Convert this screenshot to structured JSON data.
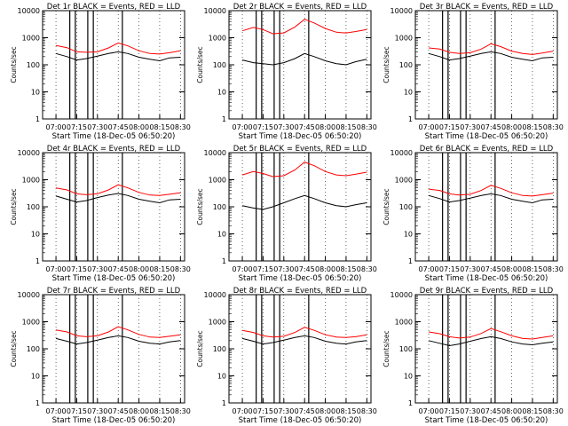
{
  "xlabel": "Start Time (18-Dec-05 06:50:20)",
  "ylabel": "Counts/sec",
  "x_ticks": [
    "07:00",
    "07:15",
    "07:30",
    "07:45",
    "08:00",
    "08:15",
    "08:30"
  ],
  "y_ticks": [
    "1",
    "10",
    "100",
    "1000",
    "10000"
  ],
  "colors": {
    "events": "#000000",
    "lld": "#ff0000",
    "background": "#ffffff"
  },
  "chart_data": [
    {
      "type": "line",
      "title": "Det 1r BLACK = Events, RED = LLD",
      "x": [
        "07:00",
        "07:08",
        "07:15",
        "07:22",
        "07:30",
        "07:38",
        "07:45",
        "07:52",
        "08:00",
        "08:08",
        "08:15",
        "08:22",
        "08:30"
      ],
      "y_scale": "log",
      "ylim": [
        1,
        10000
      ],
      "grid": "dotted-vertical",
      "legend": "title",
      "series": [
        {
          "name": "Events",
          "color": "#000000",
          "values": [
            260,
            200,
            150,
            170,
            210,
            260,
            300,
            260,
            190,
            160,
            140,
            180,
            190
          ]
        },
        {
          "name": "LLD",
          "color": "#ff0000",
          "values": [
            520,
            430,
            300,
            290,
            300,
            420,
            640,
            500,
            330,
            260,
            250,
            280,
            330
          ]
        }
      ],
      "vertical_lines": [
        "07:10",
        "07:14",
        "07:23",
        "07:27",
        "07:48"
      ]
    },
    {
      "type": "line",
      "title": "Det 2r BLACK = Events, RED = LLD",
      "x": [
        "07:00",
        "07:08",
        "07:15",
        "07:22",
        "07:30",
        "07:38",
        "07:45",
        "07:52",
        "08:00",
        "08:08",
        "08:15",
        "08:22",
        "08:30"
      ],
      "y_scale": "log",
      "ylim": [
        1,
        10000
      ],
      "grid": "dotted-vertical",
      "legend": "title",
      "series": [
        {
          "name": "Events",
          "color": "#000000",
          "values": [
            150,
            120,
            110,
            100,
            120,
            170,
            260,
            200,
            140,
            110,
            100,
            130,
            160
          ]
        },
        {
          "name": "LLD",
          "color": "#ff0000",
          "values": [
            1800,
            2400,
            2000,
            1400,
            1500,
            2500,
            4800,
            3500,
            2200,
            1600,
            1500,
            1700,
            2000
          ]
        }
      ],
      "vertical_lines": [
        "07:10",
        "07:14",
        "07:23",
        "07:27",
        "07:48"
      ]
    },
    {
      "type": "line",
      "title": "Det 3r BLACK = Events, RED = LLD",
      "x": [
        "07:00",
        "07:08",
        "07:15",
        "07:22",
        "07:30",
        "07:38",
        "07:45",
        "07:52",
        "08:00",
        "08:08",
        "08:15",
        "08:22",
        "08:30"
      ],
      "y_scale": "log",
      "ylim": [
        1,
        10000
      ],
      "grid": "dotted-vertical",
      "legend": "title",
      "series": [
        {
          "name": "Events",
          "color": "#000000",
          "values": [
            260,
            200,
            150,
            170,
            210,
            260,
            300,
            260,
            190,
            160,
            140,
            180,
            190
          ]
        },
        {
          "name": "LLD",
          "color": "#ff0000",
          "values": [
            420,
            380,
            290,
            260,
            280,
            380,
            600,
            470,
            320,
            260,
            240,
            270,
            320
          ]
        }
      ],
      "vertical_lines": [
        "07:10",
        "07:14",
        "07:23",
        "07:27",
        "07:48"
      ]
    },
    {
      "type": "line",
      "title": "Det 4r BLACK = Events, RED = LLD",
      "x": [
        "07:00",
        "07:08",
        "07:15",
        "07:22",
        "07:30",
        "07:38",
        "07:45",
        "07:52",
        "08:00",
        "08:08",
        "08:15",
        "08:22",
        "08:30"
      ],
      "y_scale": "log",
      "ylim": [
        1,
        10000
      ],
      "grid": "dotted-vertical",
      "legend": "title",
      "series": [
        {
          "name": "Events",
          "color": "#000000",
          "values": [
            250,
            190,
            150,
            170,
            220,
            270,
            310,
            260,
            190,
            160,
            140,
            180,
            190
          ]
        },
        {
          "name": "LLD",
          "color": "#ff0000",
          "values": [
            500,
            420,
            300,
            280,
            300,
            420,
            650,
            500,
            340,
            270,
            260,
            290,
            330
          ]
        }
      ],
      "vertical_lines": [
        "07:10",
        "07:14",
        "07:23",
        "07:27",
        "07:48"
      ]
    },
    {
      "type": "line",
      "title": "Det 5r BLACK = Events, RED = LLD",
      "x": [
        "07:00",
        "07:08",
        "07:15",
        "07:22",
        "07:30",
        "07:38",
        "07:45",
        "07:52",
        "08:00",
        "08:08",
        "08:15",
        "08:22",
        "08:30"
      ],
      "y_scale": "log",
      "ylim": [
        1,
        10000
      ],
      "grid": "dotted-vertical",
      "legend": "title",
      "series": [
        {
          "name": "Events",
          "color": "#000000",
          "values": [
            110,
            90,
            80,
            100,
            140,
            200,
            260,
            200,
            140,
            110,
            100,
            120,
            140
          ]
        },
        {
          "name": "LLD",
          "color": "#ff0000",
          "values": [
            1500,
            2000,
            1700,
            1300,
            1400,
            2300,
            4500,
            3300,
            2000,
            1500,
            1400,
            1600,
            1900
          ]
        }
      ],
      "vertical_lines": [
        "07:10",
        "07:14",
        "07:23",
        "07:27",
        "07:48"
      ]
    },
    {
      "type": "line",
      "title": "Det 6r BLACK = Events, RED = LLD",
      "x": [
        "07:00",
        "07:08",
        "07:15",
        "07:22",
        "07:30",
        "07:38",
        "07:45",
        "07:52",
        "08:00",
        "08:08",
        "08:15",
        "08:22",
        "08:30"
      ],
      "y_scale": "log",
      "ylim": [
        1,
        10000
      ],
      "grid": "dotted-vertical",
      "legend": "title",
      "series": [
        {
          "name": "Events",
          "color": "#000000",
          "values": [
            260,
            200,
            150,
            170,
            210,
            260,
            300,
            260,
            190,
            160,
            140,
            180,
            190
          ]
        },
        {
          "name": "LLD",
          "color": "#ff0000",
          "values": [
            450,
            400,
            300,
            270,
            290,
            400,
            620,
            480,
            330,
            260,
            250,
            280,
            320
          ]
        }
      ],
      "vertical_lines": [
        "07:10",
        "07:14",
        "07:23",
        "07:27",
        "07:48"
      ]
    },
    {
      "type": "line",
      "title": "Det 7r BLACK = Events, RED = LLD",
      "x": [
        "07:00",
        "07:08",
        "07:15",
        "07:22",
        "07:30",
        "07:38",
        "07:45",
        "07:52",
        "08:00",
        "08:08",
        "08:15",
        "08:22",
        "08:30"
      ],
      "y_scale": "log",
      "ylim": [
        1,
        10000
      ],
      "grid": "dotted-vertical",
      "legend": "title",
      "series": [
        {
          "name": "Events",
          "color": "#000000",
          "values": [
            240,
            190,
            150,
            170,
            210,
            260,
            300,
            260,
            190,
            160,
            150,
            180,
            200
          ]
        },
        {
          "name": "LLD",
          "color": "#ff0000",
          "values": [
            500,
            420,
            300,
            280,
            300,
            420,
            650,
            500,
            340,
            270,
            260,
            290,
            330
          ]
        }
      ],
      "vertical_lines": [
        "07:10",
        "07:14",
        "07:23",
        "07:27",
        "07:48"
      ]
    },
    {
      "type": "line",
      "title": "Det 8r BLACK = Events, RED = LLD",
      "x": [
        "07:00",
        "07:08",
        "07:15",
        "07:22",
        "07:30",
        "07:38",
        "07:45",
        "07:52",
        "08:00",
        "08:08",
        "08:15",
        "08:22",
        "08:30"
      ],
      "y_scale": "log",
      "ylim": [
        1,
        10000
      ],
      "grid": "dotted-vertical",
      "legend": "title",
      "series": [
        {
          "name": "Events",
          "color": "#000000",
          "values": [
            240,
            190,
            150,
            170,
            210,
            260,
            300,
            260,
            190,
            160,
            150,
            180,
            200
          ]
        },
        {
          "name": "LLD",
          "color": "#ff0000",
          "values": [
            480,
            400,
            300,
            270,
            290,
            400,
            620,
            480,
            330,
            270,
            260,
            280,
            330
          ]
        }
      ],
      "vertical_lines": [
        "07:10",
        "07:14",
        "07:23",
        "07:27",
        "07:48"
      ]
    },
    {
      "type": "line",
      "title": "Det 9r BLACK = Events, RED = LLD",
      "x": [
        "07:00",
        "07:08",
        "07:15",
        "07:22",
        "07:30",
        "07:38",
        "07:45",
        "07:52",
        "08:00",
        "08:08",
        "08:15",
        "08:22",
        "08:30"
      ],
      "y_scale": "log",
      "ylim": [
        1,
        10000
      ],
      "grid": "dotted-vertical",
      "legend": "title",
      "series": [
        {
          "name": "Events",
          "color": "#000000",
          "values": [
            200,
            160,
            130,
            150,
            190,
            240,
            280,
            240,
            180,
            150,
            140,
            160,
            180
          ]
        },
        {
          "name": "LLD",
          "color": "#ff0000",
          "values": [
            420,
            360,
            280,
            250,
            270,
            370,
            560,
            430,
            300,
            240,
            230,
            260,
            300
          ]
        }
      ],
      "vertical_lines": [
        "07:10",
        "07:14",
        "07:23",
        "07:27",
        "07:48"
      ]
    }
  ]
}
